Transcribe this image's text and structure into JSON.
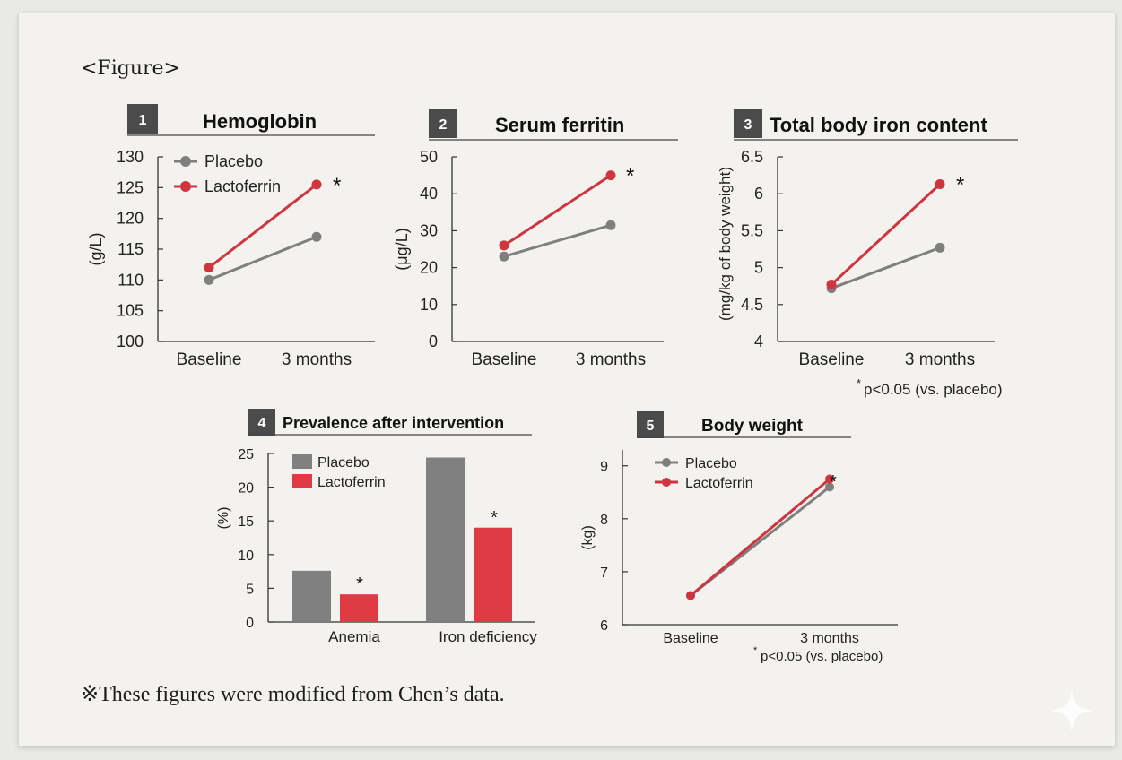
{
  "figure_label": "<Figure>",
  "footnote": "※These figures were modified from Chen’s data.",
  "colors": {
    "placebo": "#7f7f7f",
    "lactoferrin": "#d0343e",
    "badge": "#4b4b4b",
    "axis": "#333333"
  },
  "chart_data": [
    {
      "type": "line",
      "badge": "1",
      "title": "Hemoglobin",
      "ylabel": "(g/L)",
      "categories": [
        "Baseline",
        "3 months"
      ],
      "ylim": [
        100,
        130
      ],
      "yticks": [
        "100",
        "105",
        "110",
        "115",
        "120",
        "125",
        "130"
      ],
      "series": [
        {
          "name": "Placebo",
          "values": [
            110,
            117
          ]
        },
        {
          "name": "Lactoferrin",
          "values": [
            112,
            125.5
          ]
        }
      ],
      "legend": [
        "Placebo",
        "Lactoferrin"
      ],
      "asterisk": "*"
    },
    {
      "type": "line",
      "badge": "2",
      "title": "Serum ferritin",
      "ylabel": "(μg/L)",
      "categories": [
        "Baseline",
        "3 months"
      ],
      "ylim": [
        0,
        50
      ],
      "yticks": [
        "0",
        "10",
        "20",
        "30",
        "40",
        "50"
      ],
      "series": [
        {
          "name": "Placebo",
          "values": [
            23,
            31.5
          ]
        },
        {
          "name": "Lactoferrin",
          "values": [
            26,
            45
          ]
        }
      ],
      "asterisk": "*"
    },
    {
      "type": "line",
      "badge": "3",
      "title": "Total body iron content",
      "ylabel": "(mg/kg of body weight)",
      "categories": [
        "Baseline",
        "3 months"
      ],
      "ylim": [
        4,
        6.5
      ],
      "yticks": [
        "4",
        "4.5",
        "5",
        "5.5",
        "6",
        "6.5"
      ],
      "series": [
        {
          "name": "Placebo",
          "values": [
            4.72,
            5.27
          ]
        },
        {
          "name": "Lactoferrin",
          "values": [
            4.77,
            6.13
          ]
        }
      ],
      "asterisk": "*",
      "note_mark": "*",
      "note": "p<0.05 (vs. placebo)"
    },
    {
      "type": "bar",
      "badge": "4",
      "title": "Prevalence after intervention",
      "ylabel": "(%)",
      "categories": [
        "Anemia",
        "Iron deficiency"
      ],
      "ylim": [
        0,
        25
      ],
      "yticks": [
        "0",
        "5",
        "10",
        "15",
        "20",
        "25"
      ],
      "series": [
        {
          "name": "Placebo",
          "values": [
            7.6,
            24.4
          ]
        },
        {
          "name": "Lactoferrin",
          "values": [
            4.1,
            14
          ]
        }
      ],
      "legend": [
        "Placebo",
        "Lactoferrin"
      ],
      "asterisk": "*"
    },
    {
      "type": "line",
      "badge": "5",
      "title": "Body weight",
      "ylabel": "(kg)",
      "categories": [
        "Baseline",
        "3 months"
      ],
      "ylim": [
        6,
        9.3
      ],
      "yticks": [
        "6",
        "7",
        "8",
        "9"
      ],
      "series": [
        {
          "name": "Placebo",
          "values": [
            6.55,
            8.6
          ]
        },
        {
          "name": "Lactoferrin",
          "values": [
            6.55,
            8.75
          ]
        }
      ],
      "legend": [
        "Placebo",
        "Lactoferrin"
      ],
      "asterisk": "*",
      "note_mark": "*",
      "note": "p<0.05 (vs. placebo)"
    }
  ]
}
